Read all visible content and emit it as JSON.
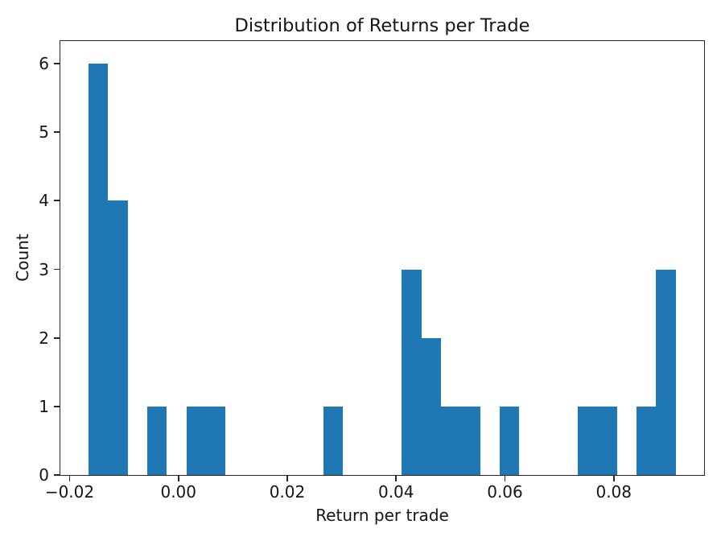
{
  "figure": {
    "background_color": "#ffffff"
  },
  "chart_data": {
    "type": "bar",
    "variant": "histogram",
    "title": "Distribution of Returns per Trade",
    "xlabel": "Return per trade",
    "ylabel": "Count",
    "grid": false,
    "legend": false,
    "bar_color": "#1f77b4",
    "spine_color": "#262626",
    "text_color": "#151515",
    "xlim": [
      -0.0217,
      0.0966
    ],
    "ylim": [
      0,
      6.33
    ],
    "xticks": [
      {
        "value": -0.02,
        "label": "−0.02"
      },
      {
        "value": 0.0,
        "label": "0.00"
      },
      {
        "value": 0.02,
        "label": "0.02"
      },
      {
        "value": 0.04,
        "label": "0.04"
      },
      {
        "value": 0.06,
        "label": "0.06"
      },
      {
        "value": 0.08,
        "label": "0.08"
      }
    ],
    "yticks": [
      {
        "value": 0,
        "label": "0"
      },
      {
        "value": 1,
        "label": "1"
      },
      {
        "value": 2,
        "label": "2"
      },
      {
        "value": 3,
        "label": "3"
      },
      {
        "value": 4,
        "label": "4"
      },
      {
        "value": 5,
        "label": "5"
      },
      {
        "value": 6,
        "label": "6"
      }
    ],
    "bin_edges": [
      -0.01652,
      -0.01292,
      -0.00933,
      -0.00573,
      -0.00213,
      0.00147,
      0.00506,
      0.00866,
      0.01226,
      0.01585,
      0.01945,
      0.02305,
      0.02664,
      0.03024,
      0.03384,
      0.03744,
      0.04103,
      0.04463,
      0.04823,
      0.05182,
      0.05542,
      0.05902,
      0.06261,
      0.06621,
      0.06981,
      0.07341,
      0.077,
      0.0806,
      0.0842,
      0.08779,
      0.09139
    ],
    "counts": [
      6,
      4,
      0,
      1,
      0,
      1,
      1,
      0,
      0,
      0,
      0,
      0,
      1,
      0,
      0,
      0,
      3,
      2,
      1,
      1,
      0,
      1,
      0,
      0,
      0,
      1,
      1,
      0,
      1,
      3
    ]
  }
}
